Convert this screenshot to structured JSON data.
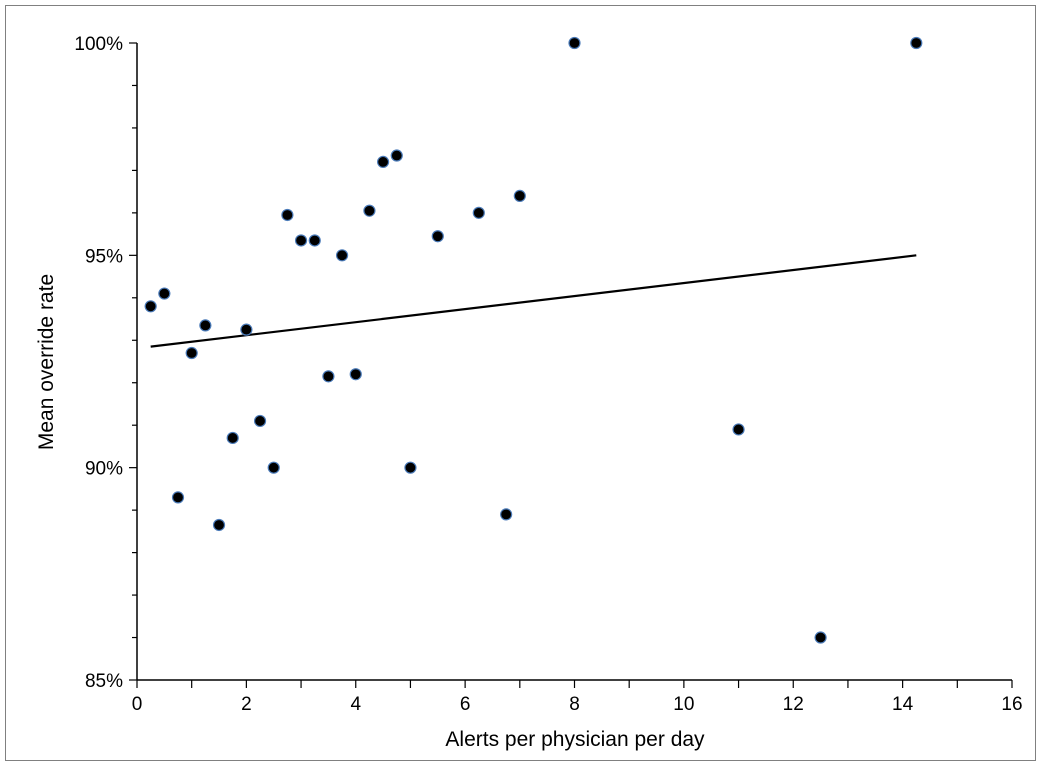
{
  "chart_data": {
    "type": "scatter",
    "title": "",
    "xlabel": "Alerts per physician per day",
    "ylabel": "Mean override rate",
    "xlim": [
      0,
      16
    ],
    "ylim": [
      85,
      100
    ],
    "x_ticks": [
      0,
      2,
      4,
      6,
      8,
      10,
      12,
      14,
      16
    ],
    "x_tick_labels": [
      "0",
      "2",
      "4",
      "6",
      "8",
      "10",
      "12",
      "14",
      "16"
    ],
    "y_ticks": [
      85,
      90,
      95,
      100
    ],
    "y_tick_labels": [
      "85%",
      "90%",
      "95%",
      "100%"
    ],
    "grid": false,
    "legend": "none",
    "colors": {
      "point_fill": "#000000",
      "point_stroke": "#4a7ab8",
      "trendline": "#000000",
      "axis": "#000000",
      "frame": "#808080"
    },
    "points": [
      {
        "x": 0.25,
        "y": 93.8
      },
      {
        "x": 0.5,
        "y": 94.1
      },
      {
        "x": 0.75,
        "y": 89.3
      },
      {
        "x": 1.0,
        "y": 92.7
      },
      {
        "x": 1.25,
        "y": 93.35
      },
      {
        "x": 1.5,
        "y": 88.65
      },
      {
        "x": 1.75,
        "y": 90.7
      },
      {
        "x": 2.0,
        "y": 93.25
      },
      {
        "x": 2.25,
        "y": 91.1
      },
      {
        "x": 2.5,
        "y": 90.0
      },
      {
        "x": 2.75,
        "y": 95.95
      },
      {
        "x": 3.0,
        "y": 95.35
      },
      {
        "x": 3.25,
        "y": 95.35
      },
      {
        "x": 3.5,
        "y": 92.15
      },
      {
        "x": 3.75,
        "y": 95.0
      },
      {
        "x": 4.0,
        "y": 92.2
      },
      {
        "x": 4.25,
        "y": 96.05
      },
      {
        "x": 4.5,
        "y": 97.2
      },
      {
        "x": 4.75,
        "y": 97.35
      },
      {
        "x": 5.0,
        "y": 90.0
      },
      {
        "x": 5.5,
        "y": 95.45
      },
      {
        "x": 6.25,
        "y": 96.0
      },
      {
        "x": 6.75,
        "y": 88.9
      },
      {
        "x": 7.0,
        "y": 96.4
      },
      {
        "x": 8.0,
        "y": 100.0
      },
      {
        "x": 11.0,
        "y": 90.9
      },
      {
        "x": 12.5,
        "y": 86.0
      },
      {
        "x": 14.25,
        "y": 100.0
      }
    ],
    "trendline": {
      "x": [
        0.25,
        14.25
      ],
      "y": [
        92.85,
        95.0
      ]
    }
  }
}
